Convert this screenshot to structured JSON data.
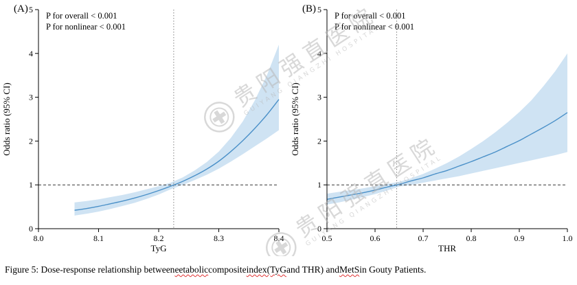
{
  "figure": {
    "caption": {
      "parts": [
        {
          "text": "Figure 5: Dose-response relationship between ",
          "misspelled": false
        },
        {
          "text": "eetabolic",
          "misspelled": true
        },
        {
          "text": " composite ",
          "misspelled": false
        },
        {
          "text": "index(TyG",
          "misspelled": true
        },
        {
          "text": " and THR) and ",
          "misspelled": false
        },
        {
          "text": "MetS",
          "misspelled": true
        },
        {
          "text": " in Gouty Patients.",
          "misspelled": false
        }
      ]
    }
  },
  "watermark": {
    "text": "贵阳强直医院",
    "subtext": "GUIYANG QIANGZHI HOSPITAL"
  },
  "chart_data": [
    {
      "type": "line",
      "panel_label": "(A)",
      "xlabel": "TyG",
      "ylabel": "Odds ratio (95% CI)",
      "xlim": [
        8.0,
        8.4
      ],
      "ylim": [
        0,
        5
      ],
      "xticks": [
        8.0,
        8.1,
        8.2,
        8.3,
        8.4
      ],
      "xtick_labels": [
        "8.0",
        "8.1",
        "8.2",
        "8.3",
        "8.4"
      ],
      "yticks": [
        0,
        1,
        2,
        3,
        4,
        5
      ],
      "ytick_labels": [
        "0",
        "1",
        "2",
        "3",
        "4",
        "5"
      ],
      "annotations": [
        "P for overall < 0.001",
        "P for nonlinear < 0.001"
      ],
      "reference_line_y": 1,
      "reference_line_x": 8.225,
      "x": [
        8.06,
        8.08,
        8.1,
        8.12,
        8.14,
        8.16,
        8.18,
        8.2,
        8.22,
        8.24,
        8.26,
        8.28,
        8.3,
        8.32,
        8.34,
        8.36,
        8.38,
        8.4
      ],
      "y": [
        0.42,
        0.46,
        0.51,
        0.57,
        0.63,
        0.7,
        0.78,
        0.87,
        0.97,
        1.08,
        1.21,
        1.36,
        1.54,
        1.76,
        2.01,
        2.29,
        2.6,
        2.95
      ],
      "ci_lower": [
        0.3,
        0.34,
        0.39,
        0.45,
        0.52,
        0.59,
        0.68,
        0.78,
        0.9,
        1.0,
        1.11,
        1.23,
        1.37,
        1.53,
        1.7,
        1.88,
        2.06,
        2.25
      ],
      "ci_upper": [
        0.6,
        0.63,
        0.67,
        0.72,
        0.77,
        0.83,
        0.9,
        0.97,
        1.05,
        1.17,
        1.33,
        1.52,
        1.76,
        2.07,
        2.45,
        2.93,
        3.5,
        4.2
      ],
      "line_color": "#4a90c8",
      "band_color": "#cfe3f3",
      "hline_color": "#333333",
      "vline_color": "#808080",
      "legend": "none",
      "grid": "off"
    },
    {
      "type": "line",
      "panel_label": "(B)",
      "xlabel": "THR",
      "ylabel": "Odds ratio (95% CI)",
      "xlim": [
        0.5,
        1.0
      ],
      "ylim": [
        0,
        5
      ],
      "xticks": [
        0.5,
        0.6,
        0.7,
        0.8,
        0.9,
        1.0
      ],
      "xtick_labels": [
        "0.5",
        "0.6",
        "0.7",
        "0.8",
        "0.9",
        "1.0"
      ],
      "yticks": [
        0,
        1,
        2,
        3,
        4,
        5
      ],
      "ytick_labels": [
        "0",
        "1",
        "2",
        "3",
        "4",
        "5"
      ],
      "annotations": [
        "P for overall < 0.001",
        "P for nonlinear < 0.001"
      ],
      "reference_line_y": 1,
      "reference_line_x": 0.645,
      "x": [
        0.5,
        0.525,
        0.55,
        0.575,
        0.6,
        0.625,
        0.65,
        0.675,
        0.7,
        0.725,
        0.75,
        0.775,
        0.8,
        0.825,
        0.85,
        0.875,
        0.9,
        0.925,
        0.95,
        0.975,
        1.0
      ],
      "y": [
        0.67,
        0.72,
        0.77,
        0.82,
        0.88,
        0.95,
        1.01,
        1.09,
        1.16,
        1.25,
        1.33,
        1.43,
        1.53,
        1.64,
        1.75,
        1.88,
        2.01,
        2.16,
        2.31,
        2.47,
        2.65
      ],
      "ci_lower": [
        0.55,
        0.6,
        0.66,
        0.72,
        0.79,
        0.87,
        0.96,
        1.0,
        1.05,
        1.1,
        1.15,
        1.2,
        1.26,
        1.32,
        1.38,
        1.44,
        1.5,
        1.56,
        1.62,
        1.68,
        1.75
      ],
      "ci_upper": [
        0.8,
        0.84,
        0.88,
        0.92,
        0.97,
        1.02,
        1.07,
        1.15,
        1.25,
        1.37,
        1.5,
        1.65,
        1.82,
        2.0,
        2.2,
        2.42,
        2.66,
        2.93,
        3.25,
        3.6,
        4.0
      ],
      "line_color": "#4a90c8",
      "band_color": "#cfe3f3",
      "hline_color": "#333333",
      "vline_color": "#808080",
      "legend": "none",
      "grid": "off"
    }
  ]
}
